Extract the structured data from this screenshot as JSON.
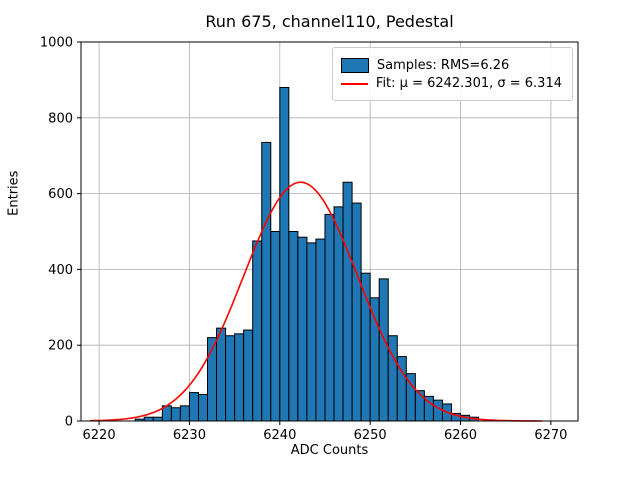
{
  "figure": {
    "title": "Run 675, channel110, Pedestal",
    "xlabel": "ADC Counts",
    "ylabel": "Entries"
  },
  "legend": {
    "samples_label": "Samples: RMS=6.26",
    "fit_label": "Fit: μ = 6242.301, σ = 6.314"
  },
  "chart_data": {
    "type": "bar",
    "title": "Run 675, channel110, Pedestal",
    "xlabel": "ADC Counts",
    "ylabel": "Entries",
    "xlim": [
      6218,
      6273
    ],
    "ylim": [
      0,
      1000
    ],
    "xticks": [
      6220,
      6230,
      6240,
      6250,
      6260,
      6270
    ],
    "yticks": [
      0,
      200,
      400,
      600,
      800,
      1000
    ],
    "grid": true,
    "legend_position": "upper right",
    "bar_color": "#1f77b4",
    "bar_edge_color": "#000000",
    "fit_color": "#ff0000",
    "grid_color": "#b0b0b0",
    "bin_width": 1,
    "bins_start": 6224,
    "counts": [
      5,
      10,
      10,
      40,
      35,
      40,
      75,
      70,
      220,
      245,
      225,
      230,
      240,
      475,
      735,
      500,
      880,
      500,
      485,
      470,
      480,
      545,
      565,
      630,
      575,
      390,
      325,
      375,
      225,
      170,
      125,
      80,
      65,
      55,
      45,
      20,
      15,
      10
    ],
    "samples_rms": 6.26,
    "fit": {
      "mu": 6242.301,
      "sigma": 6.314,
      "amplitude": 630,
      "x_range": [
        6219,
        6269
      ]
    }
  }
}
